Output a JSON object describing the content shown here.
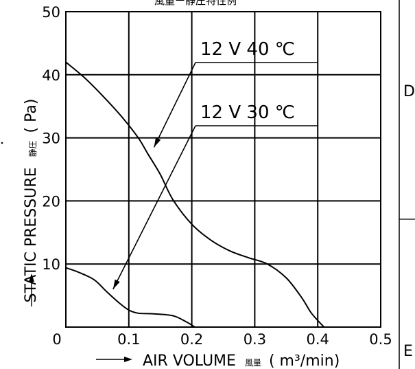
{
  "chart_data": {
    "type": "line",
    "title": "風量ー静圧特性例",
    "xlabel": "AIR VOLUME",
    "xlabel_jp": "風量",
    "xunit": "( m³/min)",
    "ylabel": "STATIC PRESSURE",
    "ylabel_jp": "静圧",
    "yunit": "( Pa)",
    "xlim": [
      0,
      0.5
    ],
    "ylim": [
      0,
      50
    ],
    "xticks": [
      "0",
      "0.1",
      "0.2",
      "0.3",
      "0.4",
      "0.5"
    ],
    "yticks": [
      "10",
      "20",
      "30",
      "40",
      "50"
    ],
    "grid": true,
    "series": [
      {
        "name": "12 V 40 ℃",
        "x": [
          0,
          0.03,
          0.06,
          0.09,
          0.115,
          0.13,
          0.15,
          0.17,
          0.2,
          0.23,
          0.26,
          0.29,
          0.32,
          0.35,
          0.375,
          0.39,
          0.41
        ],
        "y": [
          42,
          39.5,
          36.5,
          33.2,
          30.0,
          27.5,
          24.2,
          20.2,
          16.3,
          13.8,
          12.1,
          11.0,
          10.0,
          7.8,
          4.6,
          2.2,
          0
        ]
      },
      {
        "name": "12 V 30 ℃",
        "x": [
          0,
          0.02,
          0.045,
          0.065,
          0.085,
          0.1,
          0.115,
          0.14,
          0.17,
          0.19,
          0.205
        ],
        "y": [
          9.4,
          8.7,
          7.5,
          5.6,
          3.8,
          2.7,
          2.2,
          2.1,
          1.8,
          0.9,
          0
        ]
      }
    ],
    "annotations": [
      {
        "text": "12 V 40 ℃",
        "series": 0,
        "arrow_x": 0.14,
        "arrow_y": 28.5
      },
      {
        "text": "12 V 30 ℃",
        "series": 1,
        "arrow_x": 0.075,
        "arrow_y": 6.0
      }
    ]
  },
  "side_labels": {
    "top": "D",
    "bottom": "E"
  },
  "colors": {
    "line": "#000000",
    "background": "#ffffff"
  }
}
